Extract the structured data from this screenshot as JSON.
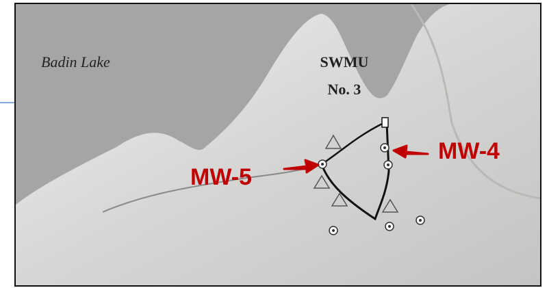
{
  "map": {
    "lake_label": "Badin Lake",
    "site_label": [
      "SWMU",
      "No. 3"
    ],
    "callouts": [
      "MW-5",
      "MW-4"
    ]
  }
}
